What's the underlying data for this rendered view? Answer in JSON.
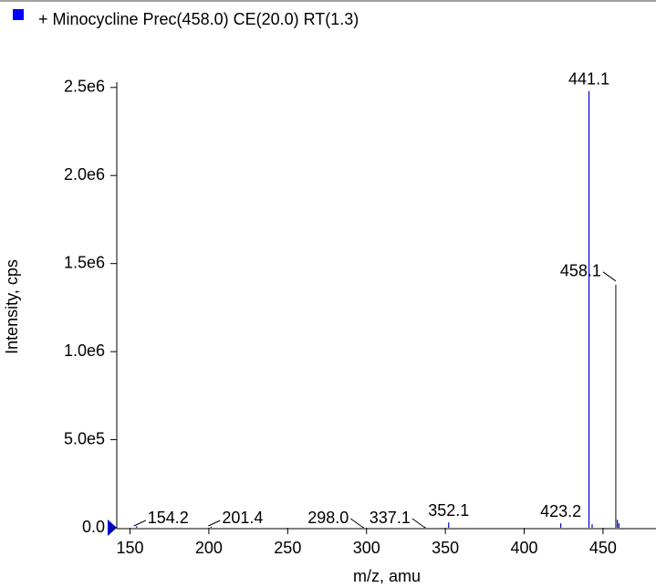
{
  "chart_data": {
    "type": "spectrum",
    "title": "+ Minocycline Prec(458.0) CE(20.0) RT(1.3)",
    "legend_color": "#0000ff",
    "xlabel": "m/z, amu",
    "ylabel": "Intensity, cps",
    "x": [
      154.2,
      201.4,
      298.0,
      337.1,
      352.1,
      423.2,
      441.1,
      443.1,
      458.1,
      459.1,
      460.1
    ],
    "values": [
      8000,
      6000,
      5000,
      6000,
      30000,
      25000,
      2480000,
      20000,
      1380000,
      45000,
      25000
    ],
    "labels": [
      "154.2",
      "201.4",
      "298.0",
      "337.1",
      "352.1",
      "423.2",
      "441.1",
      null,
      "458.1",
      null,
      null
    ],
    "colors": [
      "#0000cc",
      "#0000cc",
      "#0000cc",
      "#0000cc",
      "#0000cc",
      "#0000cc",
      "#0000cc",
      "#0000cc",
      "#333333",
      "#0000cc",
      "#0000cc"
    ],
    "xlim": [
      141.6,
      475.5
    ],
    "ylim": [
      0,
      2530000
    ],
    "xticks": [
      150,
      200,
      250,
      300,
      350,
      400,
      450
    ],
    "yticks": [
      {
        "value": 0,
        "label": "0.0"
      },
      {
        "value": 500000,
        "label": "5.0e5"
      },
      {
        "value": 1000000,
        "label": "1.0e6"
      },
      {
        "value": 1500000,
        "label": "1.5e6"
      },
      {
        "value": 2000000,
        "label": "2.0e6"
      },
      {
        "value": 2500000,
        "label": "2.5e6"
      }
    ]
  }
}
